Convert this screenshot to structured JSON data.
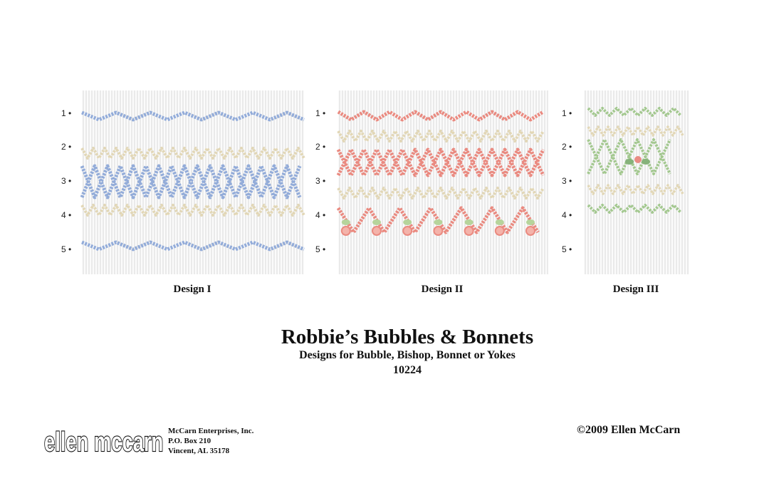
{
  "designs": [
    {
      "label": "Design I",
      "rows": [
        "1 •",
        "2 •",
        "3 •",
        "4 •",
        "5 •"
      ]
    },
    {
      "label": "Design II",
      "rows": [
        "1 •",
        "2 •",
        "3 •",
        "4 •",
        "5 •"
      ]
    },
    {
      "label": "Design III",
      "rows": [
        "1 •",
        "2 •",
        "3 •",
        "4 •",
        "5 •"
      ]
    }
  ],
  "title": "Robbie’s Bubbles & Bonnets",
  "subtitle": "Designs for Bubble, Bishop, Bonnet or Yokes",
  "code": "10224",
  "logo": "ellen mccarn",
  "company": {
    "name": "McCarn Enterprises, Inc.",
    "address": "P.O. Box 210",
    "city": "Vincent, AL 35178"
  },
  "copyright": "©2009 Ellen McCarn"
}
